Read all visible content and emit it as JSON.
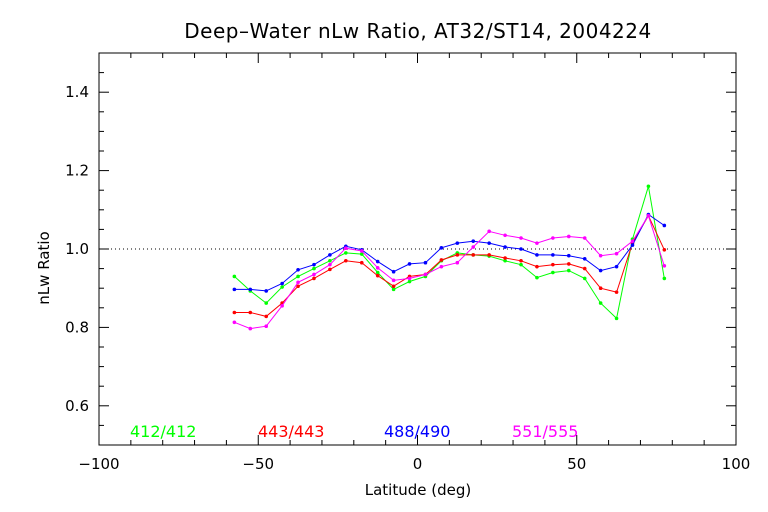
{
  "chart_data": {
    "type": "line",
    "title": "Deep–Water nLw Ratio, AT32/ST14, 2004224",
    "xlabel": "Latitude (deg)",
    "ylabel": "nLw Ratio",
    "xlim": [
      -100,
      100
    ],
    "ylim": [
      0.5,
      1.5
    ],
    "x_ticks": [
      -100,
      -50,
      0,
      50,
      100
    ],
    "x_tick_labels": [
      "−100",
      "−50",
      "0",
      "50",
      "100"
    ],
    "y_ticks": [
      0.6,
      0.8,
      1.0,
      1.2,
      1.4
    ],
    "y_tick_labels": [
      "0.6",
      "0.8",
      "1.0",
      "1.2",
      "1.4"
    ],
    "reference_line": {
      "y": 1.0,
      "style": "dotted"
    },
    "grid": false,
    "legend": "bottom, inside plot",
    "x": [
      -57.5,
      -52.5,
      -47.5,
      -42.5,
      -37.5,
      -32.5,
      -27.5,
      -22.5,
      -17.5,
      -12.5,
      -7.5,
      -2.5,
      2.5,
      7.5,
      12.5,
      17.5,
      22.5,
      27.5,
      32.5,
      37.5,
      42.5,
      47.5,
      52.5,
      57.5,
      62.5,
      67.5,
      72.5,
      77.5
    ],
    "series": [
      {
        "name": "412/412",
        "color": "#00ff00",
        "values": [
          0.93,
          0.893,
          0.862,
          0.903,
          0.93,
          0.95,
          0.97,
          0.99,
          0.987,
          0.94,
          0.897,
          0.917,
          0.93,
          0.97,
          0.99,
          0.985,
          0.982,
          0.97,
          0.96,
          0.927,
          0.94,
          0.945,
          0.925,
          0.862,
          0.823,
          1.025,
          1.16,
          0.925
        ]
      },
      {
        "name": "443/443",
        "color": "#ff0000",
        "values": [
          0.838,
          0.838,
          0.828,
          0.862,
          0.905,
          0.925,
          0.948,
          0.97,
          0.965,
          0.932,
          0.905,
          0.93,
          0.935,
          0.972,
          0.985,
          0.985,
          0.985,
          0.977,
          0.97,
          0.955,
          0.96,
          0.962,
          0.95,
          0.9,
          0.89,
          1.015,
          1.085,
          0.998
        ]
      },
      {
        "name": "488/490",
        "color": "#0000ff",
        "values": [
          0.897,
          0.897,
          0.893,
          0.912,
          0.947,
          0.96,
          0.985,
          1.007,
          0.998,
          0.968,
          0.942,
          0.962,
          0.965,
          1.003,
          1.015,
          1.02,
          1.015,
          1.005,
          1.0,
          0.985,
          0.985,
          0.983,
          0.975,
          0.945,
          0.955,
          1.01,
          1.088,
          1.06
        ]
      },
      {
        "name": "551/555",
        "color": "#ff00ff",
        "values": [
          0.813,
          0.797,
          0.803,
          0.855,
          0.915,
          0.935,
          0.96,
          1.002,
          0.995,
          0.952,
          0.92,
          0.925,
          0.935,
          0.955,
          0.965,
          1.005,
          1.045,
          1.035,
          1.028,
          1.015,
          1.028,
          1.032,
          1.028,
          0.983,
          0.988,
          1.02,
          1.085,
          0.957
        ]
      }
    ]
  }
}
